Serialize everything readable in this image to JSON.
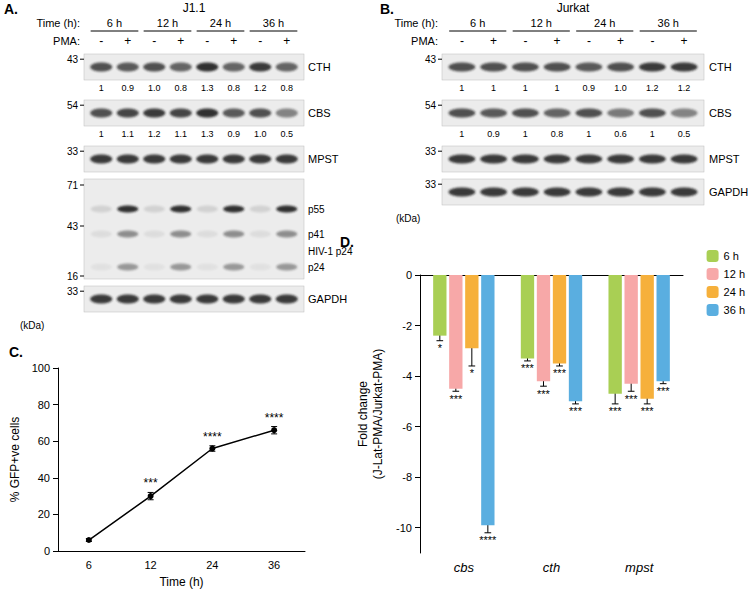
{
  "panels": [
    {
      "letter": "A.",
      "cell_line": "J1.1",
      "time_label": "Time (h):",
      "times": [
        "6 h",
        "12 h",
        "24 h",
        "36 h"
      ],
      "pma_label": "PMA:",
      "pma": [
        "-",
        "+",
        "-",
        "+",
        "-",
        "+",
        "-",
        "+"
      ],
      "unit": "(kDa)",
      "blots": [
        {
          "name": "CTH",
          "markers": [
            43
          ],
          "quant": [
            "1",
            "0.9",
            "1.0",
            "0.8",
            "1.3",
            "0.8",
            "1.2",
            "0.8"
          ]
        },
        {
          "name": "CBS",
          "markers": [
            54
          ],
          "quant": [
            "1",
            "1.1",
            "1.2",
            "1.1",
            "1.3",
            "0.9",
            "1.0",
            "0.5"
          ]
        },
        {
          "name": "MPST",
          "markers": [
            33
          ]
        },
        {
          "name": "HIV-1 p24",
          "markers": [
            71,
            43,
            16
          ],
          "bands": [
            "p55",
            "p41",
            "p24"
          ]
        },
        {
          "name": "GAPDH",
          "markers": [
            33
          ]
        }
      ]
    },
    {
      "letter": "B.",
      "cell_line": "Jurkat",
      "time_label": "Time (h):",
      "times": [
        "6 h",
        "12 h",
        "24 h",
        "36 h"
      ],
      "pma_label": "PMA:",
      "pma": [
        "-",
        "+",
        "-",
        "+",
        "-",
        "+",
        "-",
        "+"
      ],
      "unit": "(kDa)",
      "blots": [
        {
          "name": "CTH",
          "markers": [
            43
          ],
          "quant": [
            "1",
            "1",
            "1",
            "1",
            "0.9",
            "1.0",
            "1.2",
            "1.2"
          ]
        },
        {
          "name": "CBS",
          "markers": [
            54
          ],
          "quant": [
            "1",
            "0.9",
            "1",
            "0.8",
            "1",
            "0.6",
            "1",
            "0.5"
          ]
        },
        {
          "name": "MPST",
          "markers": [
            33
          ]
        },
        {
          "name": "GAPDH",
          "markers": [
            33
          ]
        }
      ]
    }
  ],
  "chart_data": [
    {
      "type": "line",
      "panel_label": "C.",
      "x_label": "Time (h)",
      "y_label": "% GFP+ve cells",
      "categories": [
        "6",
        "12",
        "24",
        "36"
      ],
      "values": [
        6,
        30,
        56,
        66
      ],
      "errors": [
        0.8,
        2,
        1.5,
        2
      ],
      "significance": [
        null,
        "***",
        "****",
        "****"
      ],
      "color": "#000000",
      "marker": "circle",
      "ylim": [
        0,
        100
      ],
      "yticks": [
        0,
        20,
        40,
        60,
        80,
        100
      ],
      "grid": false
    },
    {
      "type": "bar",
      "panel_label": "D.",
      "y_label": [
        "Fold change",
        "(J-Lat-PMA/Jurkat-PMA)"
      ],
      "categories": [
        "cbs",
        "cth",
        "mpst"
      ],
      "series": [
        {
          "name": "6 h",
          "color": "#a9cf54",
          "values": [
            -2.4,
            -3.3,
            -4.7
          ],
          "errors": [
            0.2,
            0.1,
            0.4
          ],
          "significance": [
            "*",
            "***",
            "***"
          ]
        },
        {
          "name": "12 h",
          "color": "#f7a8a8",
          "values": [
            -4.5,
            -4.2,
            -4.3
          ],
          "errors": [
            0.1,
            0.2,
            0.3
          ],
          "significance": [
            "***",
            "***",
            "***"
          ]
        },
        {
          "name": "24 h",
          "color": "#f6b03b",
          "values": [
            -2.9,
            -3.5,
            -4.9
          ],
          "errors": [
            0.7,
            0.1,
            0.2
          ],
          "significance": [
            "*",
            "***",
            "***"
          ]
        },
        {
          "name": "36 h",
          "color": "#5aaee0",
          "values": [
            -9.9,
            -5.0,
            -4.2
          ],
          "errors": [
            0.3,
            0.1,
            0.1
          ],
          "significance": [
            "****",
            "***",
            "***"
          ]
        }
      ],
      "ylim": [
        -11,
        0
      ],
      "yticks": [
        -10,
        -8,
        -6,
        -4,
        -2,
        0
      ],
      "legend": "top-right",
      "grid": false
    }
  ]
}
